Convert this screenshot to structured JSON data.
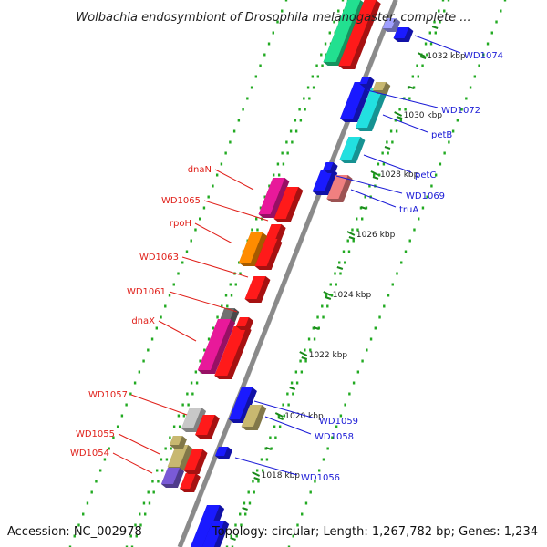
{
  "header": {
    "title": "Wolbachia endosymbiont of Drosophila melanogaster, complete ..."
  },
  "footer": {
    "accession": "Accession: NC_002978",
    "topology": "Topology: circular; Length: 1,267,782 bp; Genes: 1,234"
  },
  "colors": {
    "backbone": "#8a8a8a",
    "dots": "#22aa22",
    "label_forward": "#e0201a",
    "label_reverse": "#1a1ad6"
  },
  "scale": {
    "ticks": [
      {
        "label": "1018 kbp"
      },
      {
        "label": "1020 kbp"
      },
      {
        "label": "1022 kbp"
      },
      {
        "label": "1024 kbp"
      },
      {
        "label": "1026 kbp"
      },
      {
        "label": "1028 kbp"
      },
      {
        "label": "1030 kbp"
      },
      {
        "label": "1032 kbp"
      }
    ]
  },
  "genes_forward": [
    {
      "label": "dnaN",
      "color": "#e8199a"
    },
    {
      "label": "WD1065",
      "color": "#ff1a1a"
    },
    {
      "label": "rpoH",
      "color": "#ff8c00"
    },
    {
      "label": "WD1063",
      "color": "#ff1a1a"
    },
    {
      "label": "WD1061",
      "color": "#ff1a1a"
    },
    {
      "label": "dnaX",
      "color": "#e8199a"
    },
    {
      "label": "WD1057",
      "color": "#ff1a1a"
    },
    {
      "label": "WD1055",
      "color": "#c8b870"
    },
    {
      "label": "WD1054",
      "color": "#7a5ad6"
    }
  ],
  "genes_reverse": [
    {
      "label": "WD1074",
      "color": "#1a1aff"
    },
    {
      "label": "WD1072",
      "color": "#1a1aff"
    },
    {
      "label": "petB",
      "color": "#22e0e0"
    },
    {
      "label": "petC",
      "color": "#22e0e0"
    },
    {
      "label": "WD1069",
      "color": "#1a1aff"
    },
    {
      "label": "truA",
      "color": "#f08080"
    },
    {
      "label": "WD1059",
      "color": "#1a1aff"
    },
    {
      "label": "WD1058",
      "color": "#c8b870"
    },
    {
      "label": "WD1056",
      "color": "#1a1aff"
    }
  ]
}
